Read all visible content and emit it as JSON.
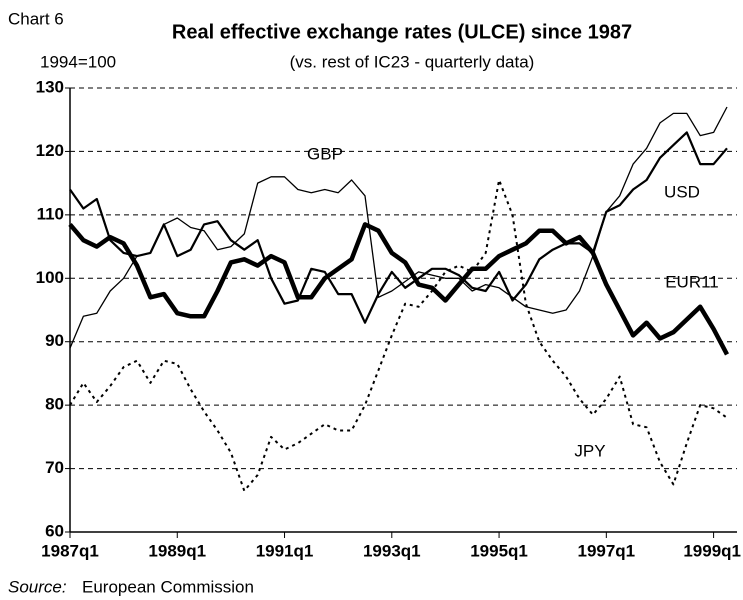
{
  "chart_data": {
    "type": "line",
    "chart_label": "Chart 6",
    "title": "Real effective exchange rates (ULCE) since 1987",
    "index_note": "1994=100",
    "subtitle": "(vs. rest of IC23  -  quarterly data)",
    "source_label": "Source:",
    "source": "European Commission",
    "categories": [
      "1987q1",
      null,
      null,
      null,
      null,
      null,
      null,
      null,
      "1989q1",
      null,
      null,
      null,
      null,
      null,
      null,
      null,
      "1991q1",
      null,
      null,
      null,
      null,
      null,
      null,
      null,
      "1993q1",
      null,
      null,
      null,
      null,
      null,
      null,
      null,
      "1995q1",
      null,
      null,
      null,
      null,
      null,
      null,
      null,
      "1997q1",
      null,
      null,
      null,
      null,
      null,
      null,
      null,
      "1999q1",
      null
    ],
    "ylim": [
      60,
      130
    ],
    "yticks": [
      60,
      70,
      80,
      90,
      100,
      110,
      120,
      130
    ],
    "grid": true,
    "series": [
      {
        "name": "EUR11",
        "color": "#000",
        "width": 4.5,
        "dash": "none",
        "values": [
          108.5,
          106,
          105,
          106.5,
          105.5,
          102,
          97,
          97.5,
          94.5,
          94,
          94,
          98,
          102.5,
          103,
          102,
          103.5,
          102.5,
          97,
          97,
          100,
          101.5,
          103,
          108.5,
          107.5,
          104,
          102.5,
          99,
          98.5,
          96.5,
          99,
          101.5,
          101.5,
          103.5,
          104.5,
          105.5,
          107.5,
          107.5,
          105.5,
          106.5,
          104,
          99,
          95,
          91,
          93,
          90.5,
          91.5,
          93.5,
          95.5,
          92,
          88
        ]
      },
      {
        "name": "USD",
        "color": "#000",
        "width": 1.3,
        "dash": "none",
        "values": [
          89,
          94,
          94.5,
          98,
          100,
          103.5,
          104,
          108.5,
          109.5,
          108,
          107.5,
          104.5,
          105,
          107,
          115,
          116,
          116,
          114,
          113.5,
          114,
          113.5,
          115.5,
          113,
          97,
          98,
          99.5,
          101,
          100.5,
          100,
          100,
          98,
          99,
          98.5,
          97,
          95.5,
          95,
          94.5,
          95,
          98,
          103.5,
          110.5,
          113,
          118,
          120.5,
          124.5,
          126,
          126,
          122.5,
          123,
          127
        ]
      },
      {
        "name": "GBP",
        "color": "#000",
        "width": 2.2,
        "dash": "none",
        "values": [
          114,
          111,
          112.5,
          106,
          104,
          103.5,
          104,
          108.5,
          103.5,
          104.5,
          108.5,
          109,
          106,
          104.5,
          106,
          100,
          96,
          96.5,
          101.5,
          101,
          97.5,
          97.5,
          93,
          97.5,
          101,
          98.5,
          100,
          101.5,
          101.5,
          100.5,
          98.5,
          98,
          101,
          96.5,
          99,
          103,
          104.5,
          105.5,
          105.5,
          104,
          110.5,
          111.5,
          114,
          115.5,
          119,
          121,
          123,
          118,
          118,
          120.5
        ]
      },
      {
        "name": "JPY",
        "color": "#000",
        "width": 2,
        "dash": "3 4",
        "values": [
          80,
          83.5,
          80.5,
          83,
          86,
          87,
          83.5,
          87,
          86.5,
          82.5,
          79,
          76,
          72.5,
          66.5,
          69,
          75,
          73,
          74,
          75.5,
          77,
          76,
          76,
          80,
          85.5,
          91,
          96,
          95.5,
          98,
          101,
          102,
          101,
          104,
          115.5,
          110,
          96,
          90,
          87,
          84.5,
          81,
          78.5,
          81,
          84.5,
          77,
          76.5,
          71,
          67.5,
          74,
          80,
          79.5,
          78
        ]
      }
    ]
  }
}
